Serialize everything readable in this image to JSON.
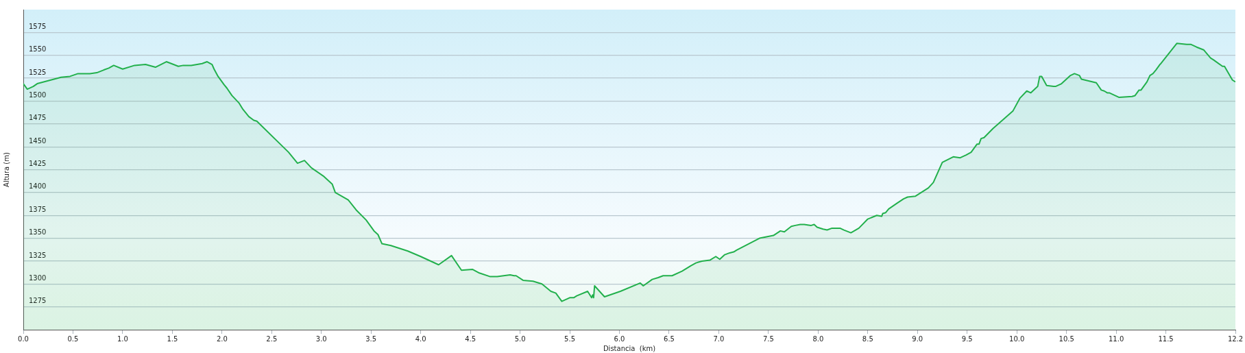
{
  "chart_data": {
    "type": "area",
    "xlabel": "Distancia  (km)",
    "ylabel": "Altura (m)",
    "color": "#22b04c",
    "marker": "none",
    "grid": "y",
    "xlim": [
      0,
      12.2
    ],
    "ylim": [
      1250,
      1600
    ],
    "xticks": [
      {
        "value": 0,
        "label": "0.0"
      },
      {
        "value": 0.5,
        "label": "0.5"
      },
      {
        "value": 1,
        "label": "1.0"
      },
      {
        "value": 1.5,
        "label": "1.5"
      },
      {
        "value": 2,
        "label": "2.0"
      },
      {
        "value": 2.5,
        "label": "2.5"
      },
      {
        "value": 3,
        "label": "3.0"
      },
      {
        "value": 3.5,
        "label": "3.5"
      },
      {
        "value": 4,
        "label": "4.0"
      },
      {
        "value": 4.5,
        "label": "4.5"
      },
      {
        "value": 5,
        "label": "5.0"
      },
      {
        "value": 5.5,
        "label": "5.5"
      },
      {
        "value": 6,
        "label": "6.0"
      },
      {
        "value": 6.5,
        "label": "6.5"
      },
      {
        "value": 7,
        "label": "7.0"
      },
      {
        "value": 7.5,
        "label": "7.5"
      },
      {
        "value": 8,
        "label": "8.0"
      },
      {
        "value": 8.5,
        "label": "8.5"
      },
      {
        "value": 9,
        "label": "9.0"
      },
      {
        "value": 9.5,
        "label": "9.5"
      },
      {
        "value": 10,
        "label": "10.0"
      },
      {
        "value": 10.5,
        "label": "10.5"
      },
      {
        "value": 11,
        "label": "11.0"
      },
      {
        "value": 11.5,
        "label": "11.5"
      },
      {
        "value": 12.2,
        "label": "12.2"
      }
    ],
    "yticks": [
      1275,
      1300,
      1325,
      1350,
      1375,
      1400,
      1425,
      1450,
      1475,
      1500,
      1525,
      1550,
      1575
    ],
    "x": [
      0,
      0.04,
      0.1,
      0.14,
      0.38,
      0.47,
      0.55,
      0.62,
      0.67,
      0.74,
      0.81,
      0.86,
      0.91,
      1.0,
      1.12,
      1.23,
      1.33,
      1.44,
      1.56,
      1.61,
      1.69,
      1.8,
      1.85,
      1.9,
      1.92,
      1.96,
      2.02,
      2.05,
      2.1,
      2.17,
      2.21,
      2.27,
      2.32,
      2.35,
      2.67,
      2.76,
      2.83,
      2.9,
      3.02,
      3.11,
      3.14,
      3.27,
      3.35,
      3.45,
      3.53,
      3.57,
      3.61,
      3.7,
      3.87,
      4.0,
      4.18,
      4.31,
      4.41,
      4.52,
      4.59,
      4.7,
      4.77,
      4.9,
      4.94,
      4.96,
      5.03,
      5.13,
      5.22,
      5.31,
      5.36,
      5.42,
      5.5,
      5.54,
      5.57,
      5.68,
      5.72,
      5.73,
      5.74,
      5.75,
      5.85,
      6.01,
      6.21,
      6.24,
      6.33,
      6.39,
      6.44,
      6.53,
      6.63,
      6.72,
      6.77,
      6.83,
      6.91,
      6.97,
      7.01,
      7.06,
      7.11,
      7.15,
      7.18,
      7.41,
      7.55,
      7.62,
      7.66,
      7.73,
      7.77,
      7.82,
      7.86,
      7.93,
      7.96,
      7.99,
      8.05,
      8.09,
      8.14,
      8.22,
      8.26,
      8.33,
      8.41,
      8.5,
      8.59,
      8.64,
      8.65,
      8.68,
      8.71,
      8.79,
      8.86,
      8.9,
      8.98,
      9.11,
      9.16,
      9.25,
      9.36,
      9.43,
      9.49,
      9.54,
      9.6,
      9.62,
      9.64,
      9.67,
      9.76,
      9.96,
      10.03,
      10.1,
      10.14,
      10.21,
      10.23,
      10.25,
      10.3,
      10.37,
      10.39,
      10.45,
      10.54,
      10.58,
      10.63,
      10.65,
      10.8,
      10.85,
      10.88,
      10.91,
      10.93,
      11.03,
      11.16,
      11.19,
      11.23,
      11.25,
      11.31,
      11.34,
      11.37,
      11.4,
      11.44,
      11.45,
      11.61,
      11.71,
      11.75,
      11.81,
      11.88,
      11.95,
      11.98,
      12.07,
      12.09,
      12.17,
      12.2
    ],
    "values": [
      1519,
      1513,
      1516,
      1519,
      1526,
      1527,
      1530,
      1530,
      1530,
      1531,
      1534,
      1536,
      1539,
      1535,
      1539,
      1540,
      1537,
      1543,
      1538,
      1539,
      1539,
      1541,
      1543,
      1540,
      1535,
      1527,
      1518,
      1514,
      1506,
      1498,
      1491,
      1483,
      1479,
      1478,
      1444,
      1432,
      1435,
      1427,
      1418,
      1409,
      1400,
      1392,
      1381,
      1370,
      1358,
      1354,
      1344,
      1342,
      1336,
      1330,
      1321,
      1331,
      1315,
      1316,
      1312,
      1308,
      1308,
      1310,
      1309,
      1309,
      1304,
      1303,
      1300,
      1292,
      1290,
      1281,
      1285,
      1285,
      1287,
      1292,
      1285,
      1288,
      1285,
      1298,
      1286,
      1292,
      1301,
      1298,
      1305,
      1307,
      1309,
      1309,
      1314,
      1320,
      1323,
      1325,
      1326,
      1330,
      1327,
      1332,
      1334,
      1335,
      1337,
      1350,
      1353,
      1358,
      1357,
      1363,
      1364,
      1365,
      1365,
      1364,
      1365,
      1362,
      1360,
      1359,
      1361,
      1361,
      1359,
      1356,
      1361,
      1371,
      1375,
      1374,
      1377,
      1378,
      1382,
      1388,
      1393,
      1395,
      1396,
      1405,
      1411,
      1433,
      1439,
      1438,
      1441,
      1444,
      1453,
      1453,
      1459,
      1460,
      1470,
      1489,
      1503,
      1511,
      1509,
      1516,
      1527,
      1527,
      1517,
      1516,
      1516,
      1519,
      1528,
      1530,
      1528,
      1524,
      1520,
      1512,
      1511,
      1509,
      1509,
      1504,
      1505,
      1506,
      1512,
      1512,
      1521,
      1528,
      1530,
      1534,
      1540,
      1541,
      1563,
      1562,
      1562,
      1559,
      1556,
      1547,
      1545,
      1538,
      1538,
      1523,
      1521
    ]
  }
}
